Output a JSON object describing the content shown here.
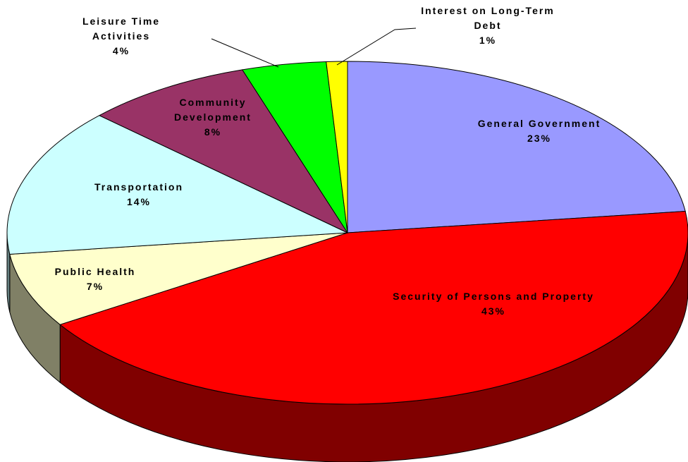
{
  "chart_data": {
    "type": "pie3d",
    "categories": [
      "General Government",
      "Security of Persons and Property",
      "Public Health",
      "Transportation",
      "Community Development",
      "Leisure Time Activities",
      "Interest on Long-Term Debt"
    ],
    "values": [
      23,
      43,
      7,
      14,
      8,
      4,
      1
    ],
    "value_labels": [
      "23%",
      "43%",
      "7%",
      "14%",
      "8%",
      "4%",
      "1%"
    ],
    "colors": [
      "#9999ff",
      "#ff0000",
      "#ffffcc",
      "#ccffff",
      "#993366",
      "#00ff00",
      "#ffff00"
    ],
    "side_colors": [
      "#4d4d80",
      "#800000",
      "#808066",
      "#668080",
      "#4d1a33",
      "#008000",
      "#808000"
    ]
  }
}
